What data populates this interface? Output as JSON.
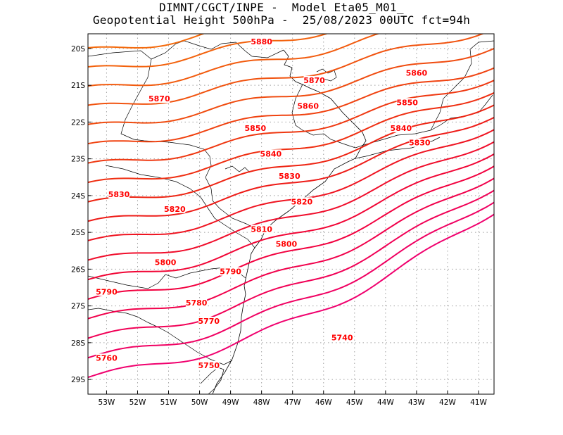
{
  "title": {
    "line1": "DIMNT/CGCT/INPE -  Model Eta05_M01_",
    "line2": "Geopotential Height 500hPa -  25/08/2023 00UTC fct=94h"
  },
  "map_extent": {
    "lon_min": -53.6,
    "lon_max": -40.5,
    "lat_min": -29.4,
    "lat_max": -19.6
  },
  "axes": {
    "lat_ticks": [
      {
        "value": -20,
        "label": "20S"
      },
      {
        "value": -21,
        "label": "21S"
      },
      {
        "value": -22,
        "label": "22S"
      },
      {
        "value": -23,
        "label": "23S"
      },
      {
        "value": -24,
        "label": "24S"
      },
      {
        "value": -25,
        "label": "25S"
      },
      {
        "value": -26,
        "label": "26S"
      },
      {
        "value": -27,
        "label": "27S"
      },
      {
        "value": -28,
        "label": "28S"
      },
      {
        "value": -29,
        "label": "29S"
      }
    ],
    "lon_ticks": [
      {
        "value": -53,
        "label": "53W"
      },
      {
        "value": -52,
        "label": "52W"
      },
      {
        "value": -51,
        "label": "51W"
      },
      {
        "value": -50,
        "label": "50W"
      },
      {
        "value": -49,
        "label": "49W"
      },
      {
        "value": -48,
        "label": "48W"
      },
      {
        "value": -47,
        "label": "47W"
      },
      {
        "value": -46,
        "label": "46W"
      },
      {
        "value": -45,
        "label": "45W"
      },
      {
        "value": -44,
        "label": "44W"
      },
      {
        "value": -43,
        "label": "43W"
      },
      {
        "value": -42,
        "label": "42W"
      },
      {
        "value": -41,
        "label": "41W"
      }
    ]
  },
  "chart_data": {
    "type": "contour",
    "variable": "Geopotential Height 500hPa",
    "units": "gpm",
    "contour_interval": 10,
    "grid": true,
    "contour_levels": [
      5710,
      5720,
      5730,
      5740,
      5750,
      5760,
      5770,
      5780,
      5790,
      5800,
      5810,
      5820,
      5830,
      5840,
      5850,
      5860,
      5870,
      5880
    ],
    "labels": [
      {
        "text": "5880",
        "lon": -48.0,
        "lat": -19.85
      },
      {
        "text": "5870",
        "lon": -46.3,
        "lat": -20.9
      },
      {
        "text": "5870",
        "lon": -51.3,
        "lat": -21.4
      },
      {
        "text": "5860",
        "lon": -43.0,
        "lat": -20.7
      },
      {
        "text": "5860",
        "lon": -46.5,
        "lat": -21.6
      },
      {
        "text": "5850",
        "lon": -43.3,
        "lat": -21.5
      },
      {
        "text": "5850",
        "lon": -48.2,
        "lat": -22.2
      },
      {
        "text": "5840",
        "lon": -43.5,
        "lat": -22.2
      },
      {
        "text": "5840",
        "lon": -47.7,
        "lat": -22.9
      },
      {
        "text": "5830",
        "lon": -42.9,
        "lat": -22.6
      },
      {
        "text": "5830",
        "lon": -47.1,
        "lat": -23.5
      },
      {
        "text": "5830",
        "lon": -52.6,
        "lat": -24.0
      },
      {
        "text": "5820",
        "lon": -46.7,
        "lat": -24.2
      },
      {
        "text": "5820",
        "lon": -50.8,
        "lat": -24.4
      },
      {
        "text": "5810",
        "lon": -48.0,
        "lat": -24.95
      },
      {
        "text": "5800",
        "lon": -47.2,
        "lat": -25.35
      },
      {
        "text": "5800",
        "lon": -51.1,
        "lat": -25.85
      },
      {
        "text": "5790",
        "lon": -49.0,
        "lat": -26.1
      },
      {
        "text": "5790",
        "lon": -53.0,
        "lat": -26.65
      },
      {
        "text": "5780",
        "lon": -50.1,
        "lat": -26.95
      },
      {
        "text": "5770",
        "lon": -49.7,
        "lat": -27.45
      },
      {
        "text": "5760",
        "lon": -53.0,
        "lat": -28.45
      },
      {
        "text": "5750",
        "lon": -49.7,
        "lat": -28.65
      },
      {
        "text": "5740",
        "lon": -45.4,
        "lat": -27.9
      }
    ]
  },
  "colors": {
    "frame": "#000000",
    "gridline": "#a0a0a0",
    "coastline": "#000000",
    "label_text": "#ff0000",
    "contour_gradient": [
      "#f0006e",
      "#f2003c",
      "#ee1f12",
      "#f04a10",
      "#f46a0c"
    ]
  }
}
